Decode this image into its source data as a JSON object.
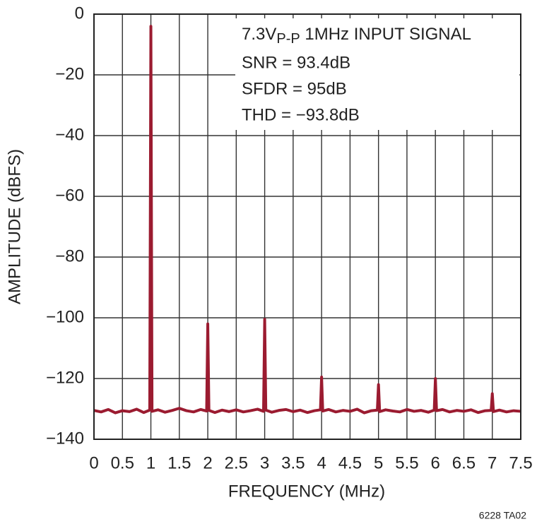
{
  "chart_data": {
    "type": "line",
    "x_label": "FREQUENCY (MHz)",
    "y_label": "AMPLITUDE (dBFS)",
    "annotation": {
      "first_line": [
        "7.3V",
        "P-P",
        " 1MHz INPUT SIGNAL"
      ],
      "lines": [
        "SNR = 93.4dB",
        "SFDR = 95dB",
        "THD = −93.8dB"
      ]
    },
    "footnote": "6228 TA02",
    "xlim": [
      0,
      7.5
    ],
    "xticks": [
      0,
      0.5,
      1,
      1.5,
      2,
      2.5,
      3,
      3.5,
      4,
      4.5,
      5,
      5.5,
      6,
      6.5,
      7,
      7.5
    ],
    "ylim": [
      -140,
      0
    ],
    "yticks": [
      {
        "value": -140,
        "label": "−140"
      },
      {
        "value": -120,
        "label": "−120"
      },
      {
        "value": -100,
        "label": "−100"
      },
      {
        "value": -80,
        "label": "−80"
      },
      {
        "value": -60,
        "label": "−60"
      },
      {
        "value": -40,
        "label": "−40"
      },
      {
        "value": -20,
        "label": "−20"
      },
      0
    ],
    "grid": true,
    "x": [
      0,
      0.125,
      0.25,
      0.375,
      0.5,
      0.625,
      0.75,
      0.875,
      0.98,
      1,
      1.02,
      1.125,
      1.25,
      1.375,
      1.5,
      1.625,
      1.75,
      1.875,
      1.98,
      2,
      2.02,
      2.125,
      2.25,
      2.375,
      2.5,
      2.625,
      2.75,
      2.875,
      2.98,
      3,
      3.02,
      3.125,
      3.25,
      3.375,
      3.5,
      3.625,
      3.75,
      3.875,
      3.98,
      4,
      4.02,
      4.125,
      4.25,
      4.375,
      4.5,
      4.625,
      4.75,
      4.875,
      4.98,
      5,
      5.02,
      5.125,
      5.25,
      5.375,
      5.5,
      5.625,
      5.75,
      5.875,
      5.98,
      6,
      6.02,
      6.125,
      6.25,
      6.375,
      6.5,
      6.625,
      6.75,
      6.875,
      6.98,
      7,
      7.02,
      7.125,
      7.25,
      7.375,
      7.5
    ],
    "series": [
      {
        "color": "#9b1b30",
        "values": [
          -130.5,
          -131,
          -130.2,
          -131.3,
          -130.6,
          -130.9,
          -130.1,
          -131.2,
          -130.4,
          -4,
          -130.8,
          -130.3,
          -131.1,
          -130.5,
          -129.8,
          -130.6,
          -131,
          -130.2,
          -130.7,
          -102,
          -130.5,
          -131.2,
          -130.4,
          -130.9,
          -130.3,
          -131,
          -130.6,
          -130.1,
          -130.8,
          -100.5,
          -130.4,
          -131.1,
          -130.5,
          -130.2,
          -130.9,
          -130.4,
          -131.2,
          -130.6,
          -130.3,
          -119.5,
          -130.7,
          -130.2,
          -131,
          -130.5,
          -130.8,
          -130.1,
          -131.3,
          -130.6,
          -130.4,
          -122,
          -130.9,
          -130.3,
          -130.7,
          -131,
          -130.2,
          -130.8,
          -130.5,
          -131.1,
          -130.4,
          -120,
          -130.6,
          -130.2,
          -131,
          -130.5,
          -130.8,
          -130.3,
          -131.2,
          -130.6,
          -130.5,
          -125,
          -130.9,
          -130.4,
          -131,
          -130.6,
          -130.8
        ]
      }
    ]
  }
}
